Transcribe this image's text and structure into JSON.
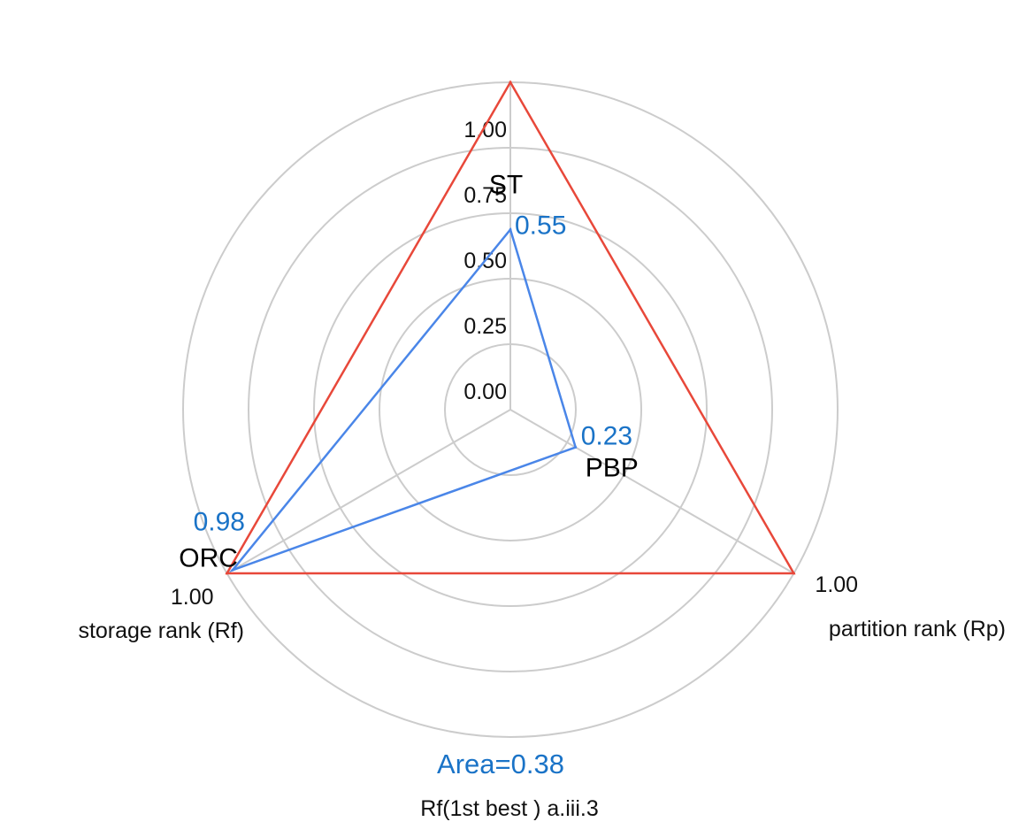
{
  "chart_data": {
    "type": "radar",
    "axes": [
      {
        "key": "ST",
        "axis_label": "",
        "end_label": "1.00"
      },
      {
        "key": "PBP",
        "axis_label": "partition rank (Rp)",
        "end_label": "1.00"
      },
      {
        "key": "ORC",
        "axis_label": "storage rank (Rf)",
        "end_label": "1.00"
      }
    ],
    "radial_ticks": [
      "0.00",
      "0.25",
      "0.50",
      "0.75",
      "1.00"
    ],
    "rlim": [
      0,
      1
    ],
    "grid": true,
    "series": [
      {
        "name": "",
        "color": "#e8483a",
        "values": [
          1.0,
          1.0,
          1.0
        ]
      },
      {
        "name": "",
        "color": "#4a86e8",
        "values": [
          0.55,
          0.23,
          0.98
        ]
      }
    ],
    "point_labels": [
      {
        "category": "ST",
        "value": "0.55"
      },
      {
        "category": "PBP",
        "value": "0.23"
      },
      {
        "category": "ORC",
        "value": "0.98"
      }
    ],
    "area_label": "Area=0.38",
    "caption": "Rf(1st best ) a.iii.3",
    "label_color": "#1a73c7"
  }
}
